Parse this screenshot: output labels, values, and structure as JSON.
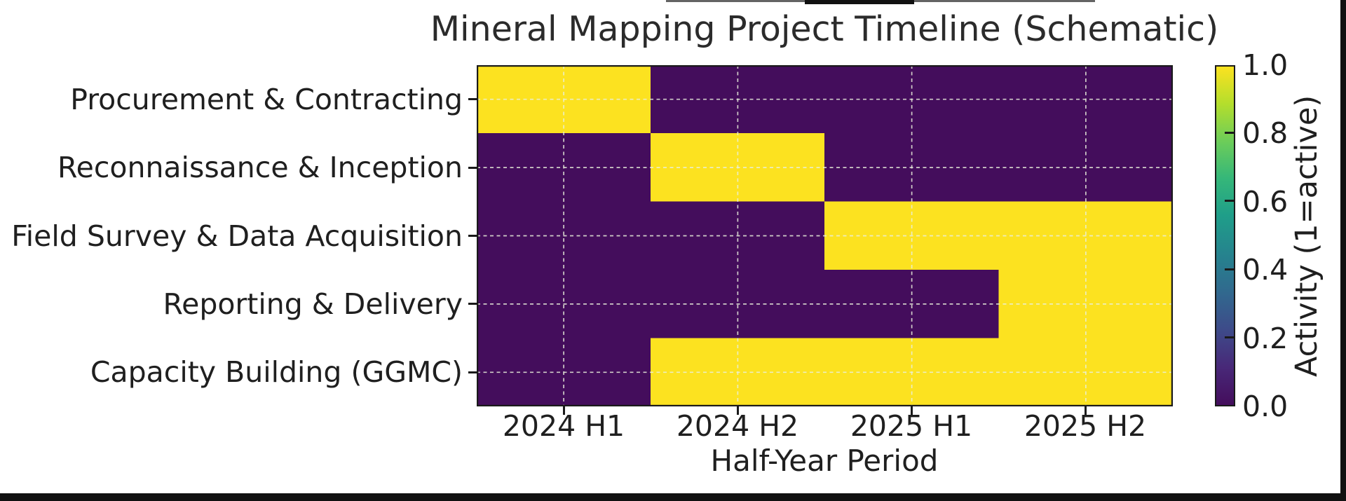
{
  "title": "Mineral Mapping Project Timeline (Schematic)",
  "chart_data": {
    "type": "heatmap",
    "title": "Mineral Mapping Project Timeline (Schematic)",
    "xlabel": "Half-Year Period",
    "ylabel": "",
    "categories_x": [
      "2024 H1",
      "2024 H2",
      "2025 H1",
      "2025 H2"
    ],
    "categories_y": [
      "Procurement & Contracting",
      "Reconnaissance & Inception",
      "Field Survey & Data Acquisition",
      "Reporting & Delivery",
      "Capacity Building (GGMC)"
    ],
    "matrix": [
      [
        1,
        0,
        0,
        0
      ],
      [
        0,
        1,
        0,
        0
      ],
      [
        0,
        0,
        1,
        1
      ],
      [
        0,
        0,
        0,
        1
      ],
      [
        0,
        1,
        1,
        1
      ]
    ],
    "vmin": 0.0,
    "vmax": 1.0,
    "colormap": "viridis",
    "active_color": "#FCE220",
    "inactive_color": "#440D5C",
    "gridline_color": "#E9EFDA",
    "grid": "dashed lines at tick centers",
    "legend_position": "right colorbar",
    "colorbar": {
      "label": "Activity (1=active)",
      "ticks": [
        "1.0",
        "0.8",
        "0.6",
        "0.4",
        "0.2",
        "0.0"
      ]
    }
  }
}
